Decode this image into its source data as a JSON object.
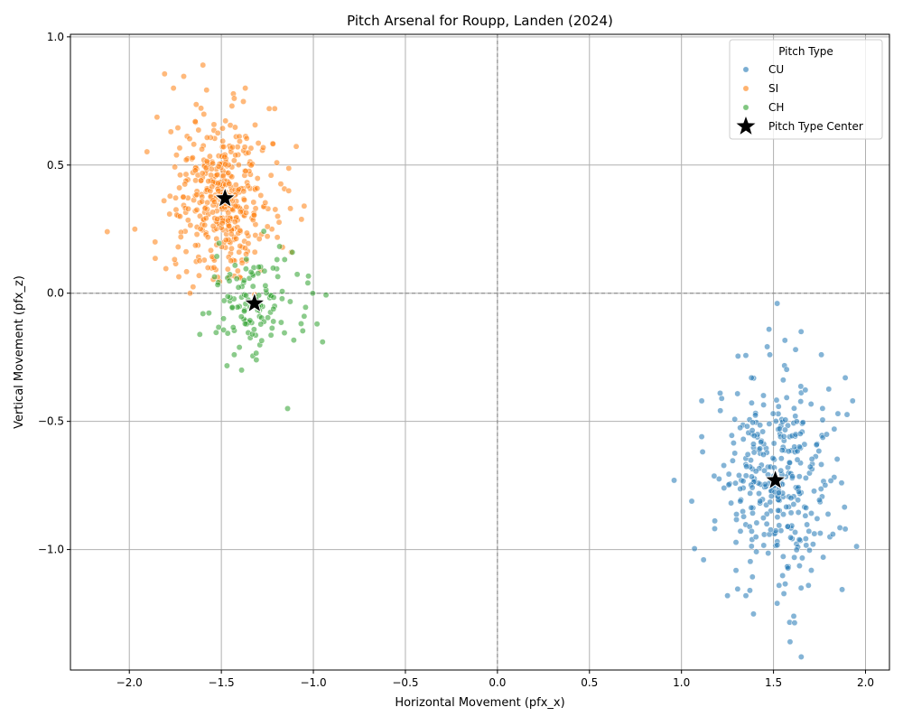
{
  "chart_data": {
    "type": "scatter",
    "title": "Pitch Arsenal for Roupp, Landen (2024)",
    "xlabel": "Horizontal Movement (pfx_x)",
    "ylabel": "Vertical Movement (pfx_z)",
    "xlim": [
      -2.32,
      2.13
    ],
    "ylim": [
      -1.47,
      1.01
    ],
    "xticks": [
      -2.0,
      -1.5,
      -1.0,
      -0.5,
      0.0,
      0.5,
      1.0,
      1.5,
      2.0
    ],
    "xtick_labels": [
      "−2.0",
      "−1.5",
      "−1.0",
      "−0.5",
      "0.0",
      "0.5",
      "1.0",
      "1.5",
      "2.0"
    ],
    "yticks": [
      -1.0,
      -0.5,
      0.0,
      0.5,
      1.0
    ],
    "ytick_labels": [
      "−1.0",
      "−0.5",
      "0.0",
      "0.5",
      "1.0"
    ],
    "grid": true,
    "reference_lines": {
      "x": 0.0,
      "y": 0.0,
      "style": "dashed"
    },
    "legend": {
      "title": "Pitch Type",
      "placement": "top-right",
      "entries": [
        "CU",
        "SI",
        "CH",
        "Pitch Type Center"
      ]
    },
    "series": [
      {
        "name": "CU",
        "color": "#1f77b4",
        "center": {
          "x": 1.51,
          "y": -0.73
        },
        "spread": {
          "sx": 0.15,
          "sy": 0.19
        },
        "count": 330,
        "points": [
          [
            0.96,
            -0.73
          ],
          [
            1.11,
            -0.42
          ],
          [
            1.21,
            -0.39
          ],
          [
            1.52,
            -0.04
          ],
          [
            1.65,
            -0.15
          ],
          [
            1.62,
            -0.22
          ],
          [
            1.48,
            -0.24
          ],
          [
            1.76,
            -0.24
          ],
          [
            1.89,
            -0.33
          ],
          [
            1.93,
            -0.42
          ],
          [
            1.38,
            -0.33
          ],
          [
            1.12,
            -1.04
          ],
          [
            1.25,
            -1.18
          ],
          [
            1.35,
            -1.18
          ],
          [
            1.61,
            -1.26
          ],
          [
            1.59,
            -1.36
          ],
          [
            1.65,
            -1.15
          ],
          [
            1.69,
            -1.14
          ],
          [
            1.53,
            -1.14
          ],
          [
            1.77,
            -1.03
          ],
          [
            1.89,
            -0.92
          ],
          [
            1.87,
            -0.74
          ],
          [
            1.83,
            -0.53
          ],
          [
            1.85,
            -0.47
          ]
        ]
      },
      {
        "name": "SI",
        "color": "#ff7f0e",
        "center": {
          "x": -1.48,
          "y": 0.37
        },
        "spread": {
          "sx": 0.14,
          "sy": 0.15
        },
        "count": 430,
        "points": [
          [
            -2.12,
            0.24
          ],
          [
            -1.97,
            0.25
          ],
          [
            -1.86,
            0.2
          ],
          [
            -1.6,
            0.89
          ],
          [
            -1.76,
            0.8
          ],
          [
            -1.37,
            0.8
          ],
          [
            -1.43,
            0.76
          ],
          [
            -1.24,
            0.72
          ],
          [
            -1.21,
            0.72
          ],
          [
            -1.05,
            0.34
          ],
          [
            -1.12,
            0.16
          ],
          [
            -1.67,
            0.0
          ],
          [
            -1.54,
            0.1
          ]
        ]
      },
      {
        "name": "CH",
        "color": "#2ca02c",
        "center": {
          "x": -1.32,
          "y": -0.04
        },
        "spread": {
          "sx": 0.13,
          "sy": 0.11
        },
        "count": 120,
        "points": [
          [
            -1.14,
            -0.45
          ],
          [
            -1.39,
            -0.3
          ],
          [
            -0.95,
            -0.19
          ],
          [
            -0.98,
            -0.12
          ],
          [
            -1.03,
            0.04
          ],
          [
            -1.05,
            -0.09
          ],
          [
            -1.31,
            -0.26
          ],
          [
            -1.43,
            -0.24
          ],
          [
            -1.6,
            -0.08
          ]
        ]
      }
    ],
    "pitch_type_centers": [
      {
        "pitch": "SI",
        "x": -1.48,
        "y": 0.37
      },
      {
        "pitch": "CH",
        "x": -1.32,
        "y": -0.04
      },
      {
        "pitch": "CU",
        "x": 1.51,
        "y": -0.73
      }
    ]
  }
}
